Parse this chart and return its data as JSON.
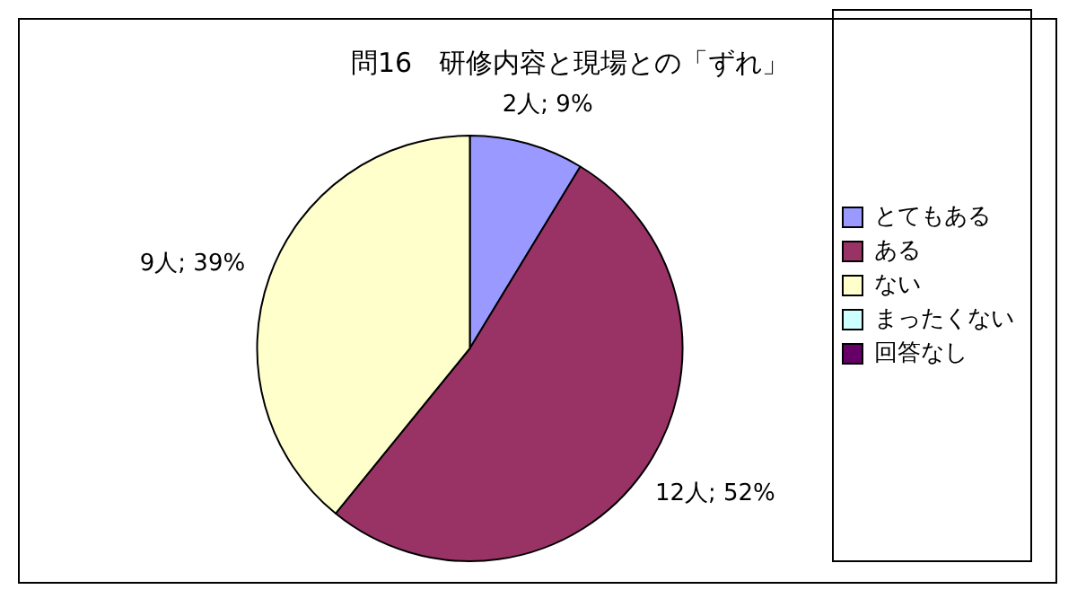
{
  "chart_data": {
    "type": "pie",
    "title": "問16　研修内容と現場との「ずれ」",
    "categories": [
      "とてもある",
      "ある",
      "ない",
      "まったくない",
      "回答なし"
    ],
    "values": [
      2,
      12,
      9,
      0,
      0
    ],
    "value_labels": [
      "2人; 9%",
      "12人; 52%",
      "9人; 39%",
      null,
      null
    ],
    "colors": [
      "#9999ff",
      "#993366",
      "#ffffcc",
      "#ccffff",
      "#660066"
    ],
    "legend": "right"
  }
}
